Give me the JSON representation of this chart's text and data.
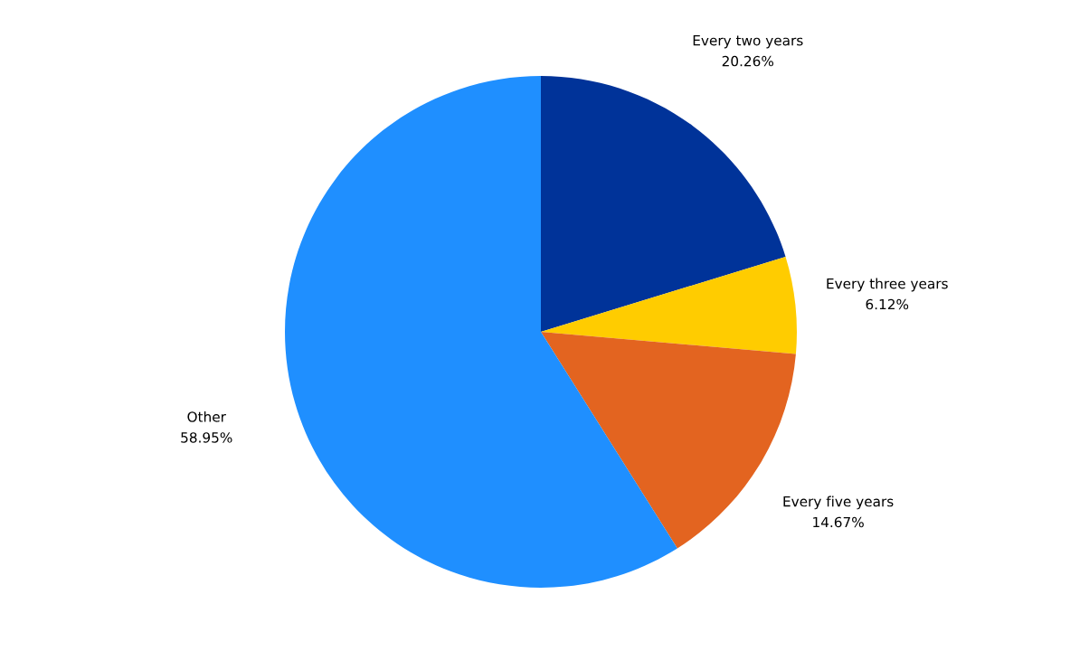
{
  "chart_data": {
    "type": "pie",
    "categories": [
      "Every two years",
      "Every three years",
      "Every five years",
      "Other"
    ],
    "values": [
      20.26,
      6.12,
      14.67,
      58.95
    ],
    "value_labels": [
      "20.26%",
      "6.12%",
      "14.67%",
      "58.95%"
    ],
    "colors": [
      "#003399",
      "#ffcc00",
      "#e36420",
      "#1f8fff"
    ],
    "legend": false
  }
}
